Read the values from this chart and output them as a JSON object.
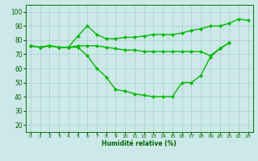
{
  "xlabel": "Humidité relative (%)",
  "bg_color": "#cce8e8",
  "grid_color": "#aacccc",
  "line_color": "#00bb00",
  "marker": "D",
  "markersize": 2.2,
  "linewidth": 1.0,
  "xlim": [
    -0.5,
    23.5
  ],
  "ylim": [
    15,
    105
  ],
  "yticks": [
    20,
    30,
    40,
    50,
    60,
    70,
    80,
    90,
    100
  ],
  "xticks": [
    0,
    1,
    2,
    3,
    4,
    5,
    6,
    7,
    8,
    9,
    10,
    11,
    12,
    13,
    14,
    15,
    16,
    17,
    18,
    19,
    20,
    21,
    22,
    23
  ],
  "series": [
    [
      76,
      75,
      76,
      75,
      75,
      83,
      90,
      84,
      81,
      81,
      82,
      82,
      83,
      84,
      84,
      84,
      85,
      87,
      88,
      90,
      90,
      92,
      95,
      94
    ],
    [
      76,
      75,
      76,
      75,
      75,
      76,
      76,
      76,
      75,
      74,
      73,
      73,
      72,
      72,
      72,
      72,
      72,
      72,
      72,
      69,
      74,
      78,
      null,
      null
    ],
    [
      76,
      75,
      76,
      75,
      75,
      75,
      69,
      60,
      54,
      45,
      44,
      42,
      41,
      40,
      40,
      40,
      50,
      50,
      55,
      68,
      74,
      78,
      null,
      null
    ]
  ]
}
